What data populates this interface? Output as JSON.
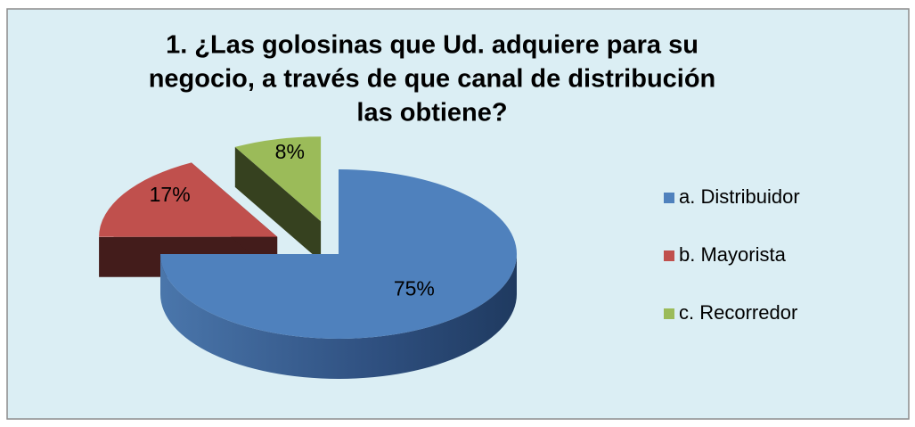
{
  "chart_data": {
    "type": "pie",
    "title": [
      "1. ¿Las golosinas que Ud. adquiere para su",
      "negocio, a través de que canal de distribución",
      "las obtiene?"
    ],
    "categories": [
      "a. Distribuidor",
      "b. Mayorista",
      "c. Recorredor"
    ],
    "values": [
      75,
      17,
      8
    ],
    "value_labels": [
      "75%",
      "17%",
      "8%"
    ],
    "colors": [
      "#4f81bd",
      "#c0504d",
      "#9bbb59"
    ],
    "legend": "right"
  }
}
